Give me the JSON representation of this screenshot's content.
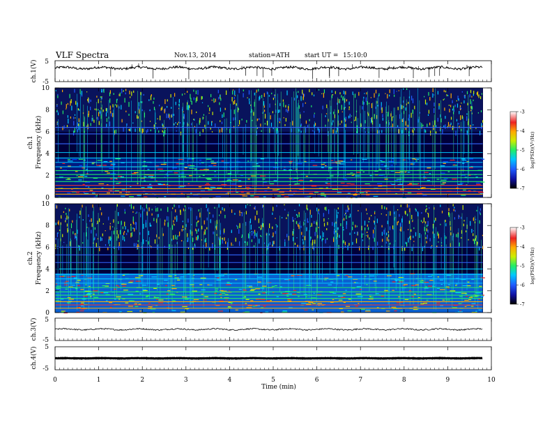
{
  "header": {
    "title": "VLF Spectra",
    "date": "Nov.13, 2014",
    "station": "station=ATH",
    "start_label": "start UT =",
    "start_time": "15:10:0"
  },
  "chart_data": [
    {
      "type": "line",
      "panel": "ch1-waveform",
      "ylabel": "ch.1(V)",
      "ylim": [
        -5,
        5
      ],
      "yticks": [
        "5",
        "-5"
      ],
      "baseline": 1.5,
      "color": "#000000"
    },
    {
      "type": "heatmap",
      "panel": "ch1-spectrogram",
      "ylabel": [
        "ch.1",
        "Frequency (kHz)"
      ],
      "ylim": [
        0,
        10
      ],
      "yticks": [
        "0",
        "2",
        "4",
        "6",
        "8",
        "10"
      ],
      "colorbar": {
        "label": "log(PSD)(V²/Hz)",
        "range": [
          -7,
          -3
        ],
        "ticks": [
          "-3",
          "-4",
          "-5",
          "-6",
          "-7"
        ]
      },
      "features": {
        "tone_lines_khz": [
          0.3,
          0.55,
          0.8,
          1.1,
          1.45,
          1.8,
          2.1,
          2.45,
          2.8,
          3.2,
          3.6,
          4.1,
          4.9,
          5.8,
          6.4
        ],
        "sferic_band_khz": [
          6,
          10
        ]
      }
    },
    {
      "type": "heatmap",
      "panel": "ch2-spectrogram",
      "ylabel": [
        "ch.2",
        "Frequency (kHz)"
      ],
      "ylim": [
        0,
        10
      ],
      "yticks": [
        "0",
        "2",
        "4",
        "6",
        "8",
        "10"
      ],
      "colorbar": {
        "label": "log(PSD)(V²/Hz)",
        "range": [
          -7,
          -3
        ],
        "ticks": [
          "-3",
          "-4",
          "-5",
          "-6",
          "-7"
        ]
      },
      "features": {
        "tone_lines_khz": [
          0.4,
          0.7,
          1.0,
          1.3,
          1.6,
          1.9,
          2.3,
          2.7,
          3.1,
          3.5,
          4.0,
          4.6,
          5.3,
          6.0
        ],
        "sferic_band_khz": [
          6,
          10
        ]
      }
    },
    {
      "type": "line",
      "panel": "ch3-waveform",
      "ylabel": "ch.3(V)",
      "ylim": [
        -5,
        5
      ],
      "yticks": [
        "5",
        "-5"
      ],
      "baseline": 0,
      "color": "#000000"
    },
    {
      "type": "line",
      "panel": "ch4-waveform",
      "ylabel": "ch.4(V)",
      "ylim": [
        -5,
        5
      ],
      "yticks": [
        "5",
        "-5"
      ],
      "baseline": 0,
      "color": "#000000"
    }
  ],
  "xaxis": {
    "label": "Time (min)",
    "xlim": [
      0,
      10
    ],
    "ticks": [
      "0",
      "1",
      "2",
      "3",
      "4",
      "5",
      "6",
      "7",
      "8",
      "9",
      "10"
    ],
    "data_end": 9.8
  }
}
